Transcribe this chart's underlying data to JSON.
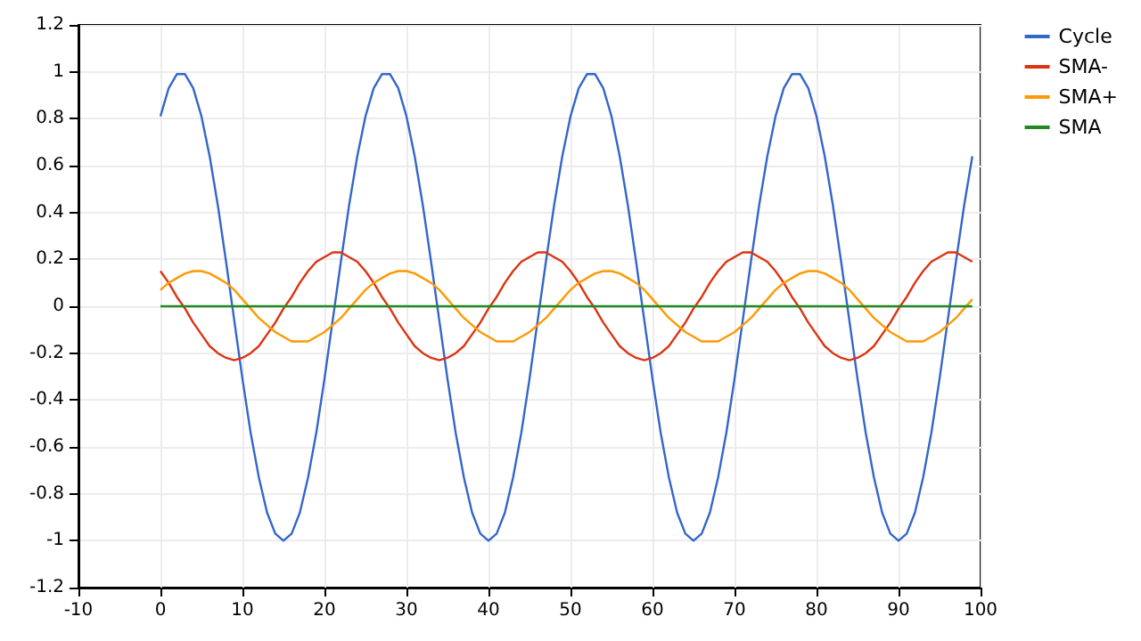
{
  "chart_data": {
    "type": "line",
    "x": [
      0,
      1,
      2,
      3,
      4,
      5,
      6,
      7,
      8,
      9,
      10,
      11,
      12,
      13,
      14,
      15,
      16,
      17,
      18,
      19,
      20,
      21,
      22,
      23,
      24,
      25,
      26,
      27,
      28,
      29,
      30,
      31,
      32,
      33,
      34,
      35,
      36,
      37,
      38,
      39,
      40,
      41,
      42,
      43,
      44,
      45,
      46,
      47,
      48,
      49,
      50,
      51,
      52,
      53,
      54,
      55,
      56,
      57,
      58,
      59,
      60,
      61,
      62,
      63,
      64,
      65,
      66,
      67,
      68,
      69,
      70,
      71,
      72,
      73,
      74,
      75,
      76,
      77,
      78,
      79,
      80,
      81,
      82,
      83,
      84,
      85,
      86,
      87,
      88,
      89,
      90,
      91,
      92,
      93,
      94,
      95,
      96,
      97,
      98,
      99
    ],
    "series": [
      {
        "name": "Cycle",
        "color": "#3366cc",
        "values": [
          0.81,
          0.93,
          0.99,
          0.99,
          0.93,
          0.81,
          0.64,
          0.43,
          0.19,
          -0.06,
          -0.31,
          -0.54,
          -0.73,
          -0.88,
          -0.97,
          -1,
          -0.97,
          -0.88,
          -0.73,
          -0.54,
          -0.31,
          -0.06,
          0.19,
          0.43,
          0.64,
          0.81,
          0.93,
          0.99,
          0.99,
          0.93,
          0.81,
          0.64,
          0.43,
          0.19,
          -0.06,
          -0.31,
          -0.54,
          -0.73,
          -0.88,
          -0.97,
          -1,
          -0.97,
          -0.88,
          -0.73,
          -0.54,
          -0.31,
          -0.06,
          0.19,
          0.43,
          0.64,
          0.81,
          0.93,
          0.99,
          0.99,
          0.93,
          0.81,
          0.64,
          0.43,
          0.19,
          -0.06,
          -0.31,
          -0.54,
          -0.73,
          -0.88,
          -0.97,
          -1,
          -0.97,
          -0.88,
          -0.73,
          -0.54,
          -0.31,
          -0.06,
          0.19,
          0.43,
          0.64,
          0.81,
          0.93,
          0.99,
          0.99,
          0.93,
          0.81,
          0.64,
          0.43,
          0.19,
          -0.06,
          -0.31,
          -0.54,
          -0.73,
          -0.88,
          -0.97,
          -1,
          -0.97,
          -0.88,
          -0.73,
          -0.54,
          -0.31,
          -0.06,
          0.19,
          0.43,
          0.64
        ]
      },
      {
        "name": "SMA-",
        "color": "#dd3311",
        "values": [
          0.15,
          0.1,
          0.04,
          -0.01,
          -0.07,
          -0.12,
          -0.17,
          -0.2,
          -0.22,
          -0.23,
          -0.22,
          -0.2,
          -0.17,
          -0.12,
          -0.07,
          -0.01,
          0.04,
          0.1,
          0.15,
          0.19,
          0.21,
          0.23,
          0.23,
          0.21,
          0.19,
          0.15,
          0.1,
          0.04,
          -0.01,
          -0.07,
          -0.12,
          -0.17,
          -0.2,
          -0.22,
          -0.23,
          -0.22,
          -0.2,
          -0.17,
          -0.12,
          -0.07,
          -0.01,
          0.04,
          0.1,
          0.15,
          0.19,
          0.21,
          0.23,
          0.23,
          0.21,
          0.19,
          0.15,
          0.1,
          0.04,
          -0.01,
          -0.07,
          -0.12,
          -0.17,
          -0.2,
          -0.22,
          -0.23,
          -0.22,
          -0.2,
          -0.17,
          -0.12,
          -0.07,
          -0.01,
          0.04,
          0.1,
          0.15,
          0.19,
          0.21,
          0.23,
          0.23,
          0.21,
          0.19,
          0.15,
          0.1,
          0.04,
          -0.01,
          -0.07,
          -0.12,
          -0.17,
          -0.2,
          -0.22,
          -0.23,
          -0.22,
          -0.2,
          -0.17,
          -0.12,
          -0.07,
          -0.01,
          0.04,
          0.1,
          0.15,
          0.19,
          0.21,
          0.23,
          0.23,
          0.21,
          0.19
        ]
      },
      {
        "name": "SMA+",
        "color": "#ff9900",
        "values": [
          0.07,
          0.1,
          0.12,
          0.14,
          0.15,
          0.15,
          0.14,
          0.12,
          0.1,
          0.07,
          0.03,
          -0.01,
          -0.05,
          -0.08,
          -0.11,
          -0.13,
          -0.15,
          -0.15,
          -0.15,
          -0.13,
          -0.11,
          -0.08,
          -0.05,
          -0.01,
          0.03,
          0.07,
          0.1,
          0.12,
          0.14,
          0.15,
          0.15,
          0.14,
          0.12,
          0.1,
          0.07,
          0.03,
          -0.01,
          -0.05,
          -0.08,
          -0.11,
          -0.13,
          -0.15,
          -0.15,
          -0.15,
          -0.13,
          -0.11,
          -0.08,
          -0.05,
          -0.01,
          0.03,
          0.07,
          0.1,
          0.12,
          0.14,
          0.15,
          0.15,
          0.14,
          0.12,
          0.1,
          0.07,
          0.03,
          -0.01,
          -0.05,
          -0.08,
          -0.11,
          -0.13,
          -0.15,
          -0.15,
          -0.15,
          -0.13,
          -0.11,
          -0.08,
          -0.05,
          -0.01,
          0.03,
          0.07,
          0.1,
          0.12,
          0.14,
          0.15,
          0.15,
          0.14,
          0.12,
          0.1,
          0.07,
          0.03,
          -0.01,
          -0.05,
          -0.08,
          -0.11,
          -0.13,
          -0.15,
          -0.15,
          -0.15,
          -0.13,
          -0.11,
          -0.08,
          -0.05,
          -0.01,
          0.03
        ]
      },
      {
        "name": "SMA",
        "color": "#228822",
        "values": [
          0,
          0,
          0,
          0,
          0,
          0,
          0,
          0,
          0,
          0,
          0,
          0,
          0,
          0,
          0,
          0,
          0,
          0,
          0,
          0,
          0,
          0,
          0,
          0,
          0,
          0,
          0,
          0,
          0,
          0,
          0,
          0,
          0,
          0,
          0,
          0,
          0,
          0,
          0,
          0,
          0,
          0,
          0,
          0,
          0,
          0,
          0,
          0,
          0,
          0,
          0,
          0,
          0,
          0,
          0,
          0,
          0,
          0,
          0,
          0,
          0,
          0,
          0,
          0,
          0,
          0,
          0,
          0,
          0,
          0,
          0,
          0,
          0,
          0,
          0,
          0,
          0,
          0,
          0,
          0,
          0,
          0,
          0,
          0,
          0,
          0,
          0,
          0,
          0,
          0,
          0,
          0,
          0,
          0,
          0,
          0,
          0,
          0,
          0,
          0
        ]
      }
    ],
    "xlim": [
      -10,
      100
    ],
    "xticks": [
      -10,
      0,
      10,
      20,
      30,
      40,
      50,
      60,
      70,
      80,
      90,
      100
    ],
    "ylim": [
      -1.2,
      1.2
    ],
    "yticks": [
      -1.2,
      -1,
      -0.8,
      -0.6,
      -0.4,
      -0.2,
      0,
      0.2,
      0.4,
      0.6,
      0.8,
      1,
      1.2
    ],
    "grid": true,
    "legend": "top right",
    "marker": "none",
    "line_style": "solid"
  }
}
